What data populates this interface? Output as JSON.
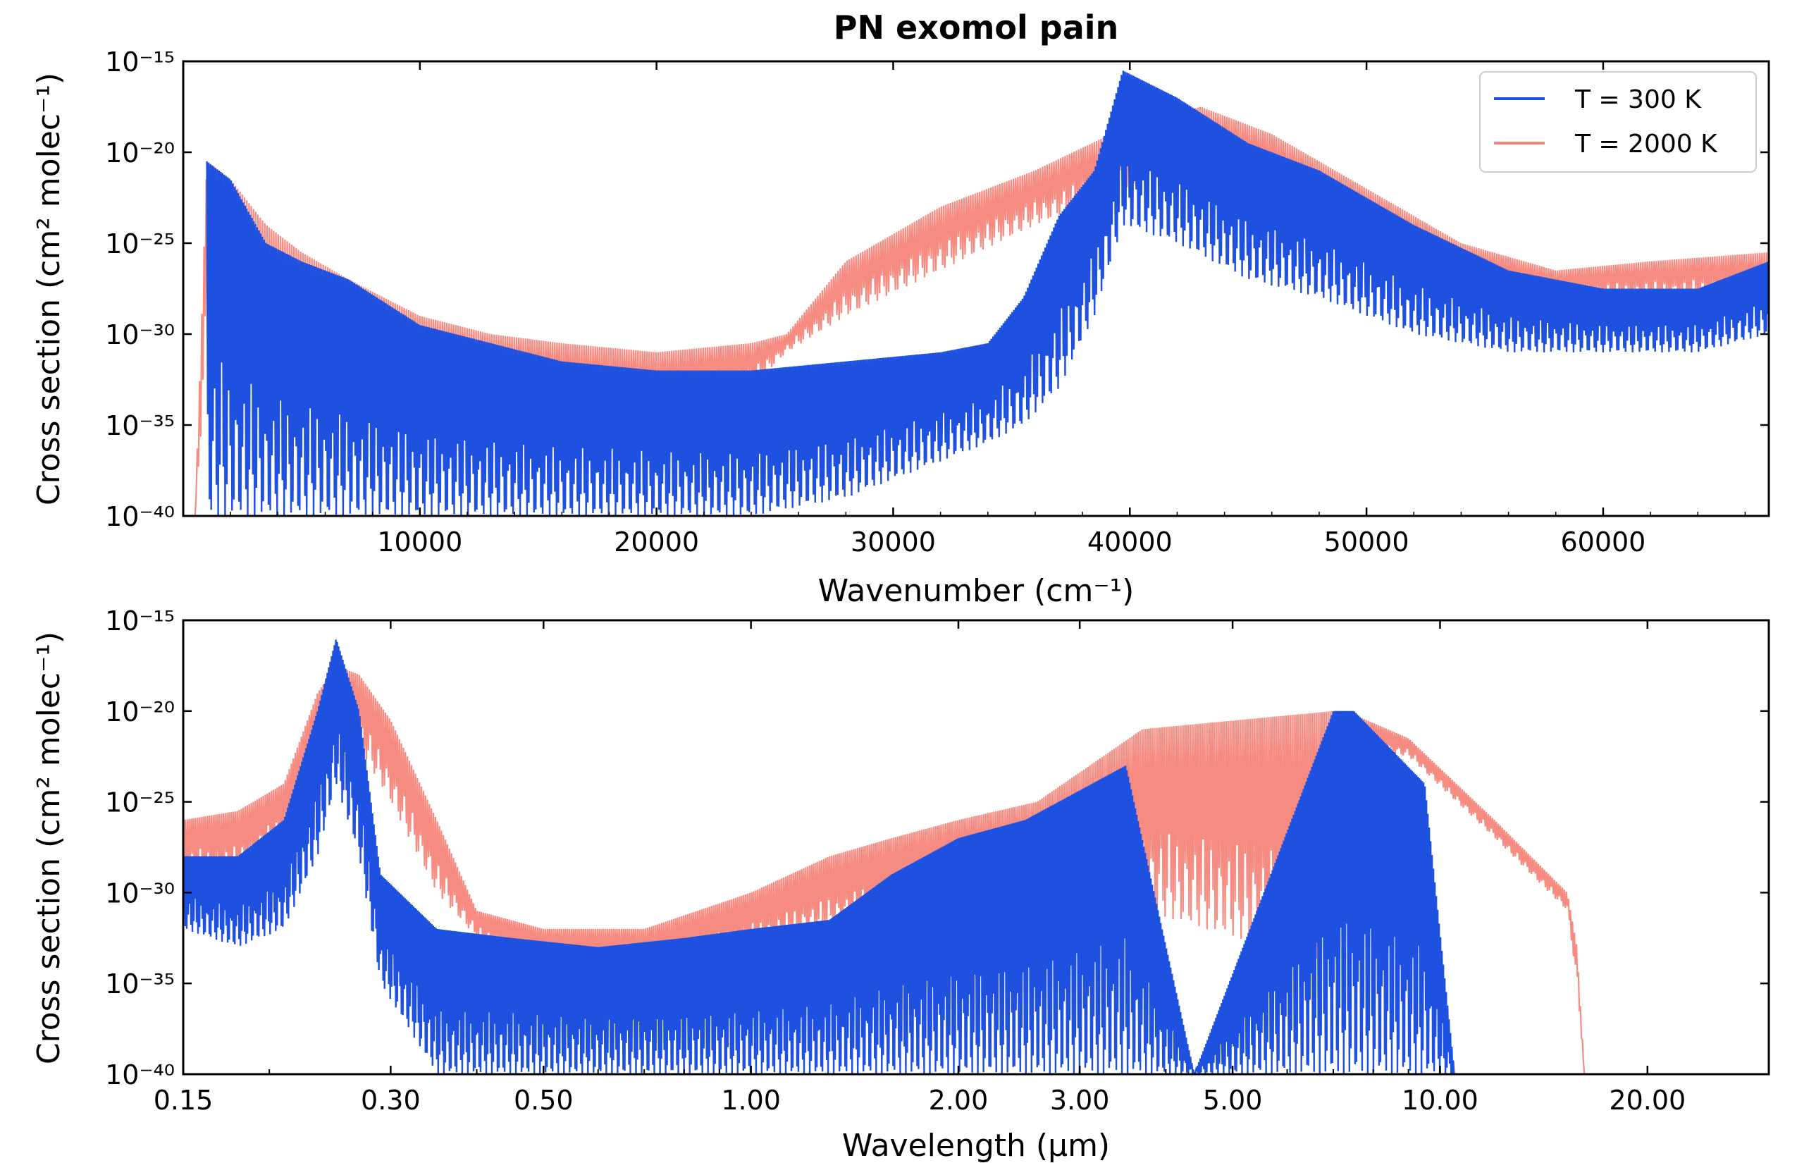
{
  "chart_data": [
    {
      "type": "line",
      "title": "PN exomol pain",
      "xlabel": "Wavenumber (cm⁻¹)",
      "ylabel": "Cross section (cm² molec⁻¹)",
      "xscale": "linear",
      "yscale": "log",
      "xlim": [
        0,
        67000
      ],
      "ylim": [
        1e-40,
        1e-15
      ],
      "xticks": [
        10000,
        20000,
        30000,
        40000,
        50000,
        60000
      ],
      "xtick_labels": [
        "10000",
        "20000",
        "30000",
        "40000",
        "50000",
        "60000"
      ],
      "yticks": [
        -40,
        -35,
        -30,
        -25,
        -20,
        -15
      ],
      "ytick_labels": [
        "10⁻⁴⁰",
        "10⁻³⁵",
        "10⁻³⁰",
        "10⁻²⁵",
        "10⁻²⁰",
        "10⁻¹⁵"
      ],
      "legend": {
        "position": "top-right",
        "entries": [
          "T = 300 K",
          "T = 2000 K"
        ]
      },
      "series": [
        {
          "name": "T = 300 K",
          "color": "#1f51e0",
          "style": "vibrational bands with deep drops",
          "x": [
            1000,
            2000,
            3500,
            5000,
            7000,
            10000,
            13000,
            16000,
            20000,
            24000,
            28000,
            32000,
            34000,
            35500,
            37000,
            38500,
            39700,
            42000,
            45000,
            48000,
            52000,
            56000,
            60000,
            64000,
            67000
          ],
          "y_log10_upper": [
            -20.5,
            -21.5,
            -25,
            -26,
            -27,
            -29.5,
            -30.5,
            -31.5,
            -32,
            -32,
            -31.5,
            -31,
            -30.5,
            -28,
            -23.5,
            -21,
            -15.5,
            -17,
            -19.5,
            -21,
            -24,
            -26.5,
            -27.5,
            -27.5,
            -26
          ],
          "y_log10_lower": [
            -40,
            -40,
            -40,
            -40,
            -40,
            -40,
            -40,
            -40,
            -40,
            -40,
            -39,
            -37,
            -36,
            -35,
            -33,
            -29,
            -24,
            -25,
            -27,
            -28,
            -30,
            -31,
            -31,
            -31,
            -30
          ]
        },
        {
          "name": "T = 2000 K",
          "color": "#f4857a",
          "style": "dense filled band",
          "x": [
            500,
            1000,
            2000,
            3500,
            5000,
            7000,
            10000,
            13000,
            16000,
            20000,
            24000,
            25500,
            28000,
            32000,
            36000,
            40000,
            43000,
            46000,
            50000,
            54000,
            58000,
            62000,
            67000
          ],
          "y_log10_upper": [
            -40,
            -20.5,
            -21.5,
            -24,
            -25.5,
            -27,
            -29,
            -30,
            -30.5,
            -31,
            -30.5,
            -30,
            -26,
            -23,
            -21,
            -18.5,
            -17.5,
            -19,
            -22,
            -25,
            -26.5,
            -26,
            -25.5
          ],
          "y_log10_lower": [
            -40,
            -31,
            -31.5,
            -31.5,
            -31.5,
            -31.5,
            -32,
            -33,
            -34,
            -34.5,
            -33,
            -31,
            -29,
            -26.5,
            -24,
            -22,
            -20.5,
            -22,
            -24.5,
            -27,
            -28,
            -28,
            -28
          ]
        }
      ]
    },
    {
      "type": "line",
      "title": "",
      "xlabel": "Wavelength (μm)",
      "ylabel": "Cross section (cm² molec⁻¹)",
      "xscale": "log",
      "yscale": "log",
      "xlim": [
        0.15,
        30
      ],
      "ylim": [
        1e-40,
        1e-15
      ],
      "xticks": [
        0.15,
        0.3,
        0.5,
        1.0,
        2.0,
        3.0,
        5.0,
        10.0,
        20.0
      ],
      "xtick_labels": [
        "0.15",
        "0.30",
        "0.50",
        "1.00",
        "2.00",
        "3.00",
        "5.00",
        "10.00",
        "20.00"
      ],
      "yticks": [
        -40,
        -35,
        -30,
        -25,
        -20,
        -15
      ],
      "ytick_labels": [
        "10⁻⁴⁰",
        "10⁻³⁵",
        "10⁻³⁰",
        "10⁻²⁵",
        "10⁻²⁰",
        "10⁻¹⁵"
      ],
      "series": [
        {
          "name": "T = 300 K",
          "color": "#1f51e0",
          "style": "vibrational bands with deep drops",
          "x": [
            0.15,
            0.18,
            0.21,
            0.235,
            0.25,
            0.27,
            0.29,
            0.35,
            0.45,
            0.6,
            0.8,
            1.0,
            1.3,
            1.6,
            2.0,
            2.5,
            3.5,
            4.4,
            7.0,
            7.5,
            9.5,
            10.5
          ],
          "y_log10_upper": [
            -28,
            -28,
            -26,
            -20,
            -16,
            -20,
            -29,
            -32,
            -32.5,
            -33,
            -32.5,
            -32,
            -31.5,
            -29,
            -27,
            -26,
            -23,
            -40,
            -20,
            -20,
            -24,
            -40
          ],
          "y_log10_lower": [
            -32,
            -33,
            -32,
            -28,
            -24,
            -28,
            -35,
            -40,
            -40,
            -40,
            -40,
            -40,
            -40,
            -40,
            -40,
            -40,
            -40,
            -40,
            -40,
            -40,
            -40,
            -40
          ]
        },
        {
          "name": "T = 2000 K",
          "color": "#f4857a",
          "style": "dense filled band",
          "x": [
            0.15,
            0.18,
            0.21,
            0.235,
            0.25,
            0.27,
            0.3,
            0.35,
            0.4,
            0.5,
            0.7,
            1.0,
            1.3,
            1.6,
            2.0,
            2.6,
            3.7,
            7.0,
            7.3,
            9.0,
            12.0,
            15.3,
            15.8,
            16.2
          ],
          "y_log10_upper": [
            -26,
            -25.5,
            -24,
            -19,
            -17.5,
            -18,
            -20.5,
            -26,
            -31,
            -32,
            -32,
            -30,
            -28,
            -27,
            -26,
            -25,
            -21,
            -20,
            -20,
            -21.5,
            -26,
            -30,
            -33,
            -40
          ],
          "y_log10_lower": [
            -29,
            -29,
            -27,
            -22,
            -20.5,
            -22,
            -25,
            -30,
            -32.5,
            -34,
            -34.5,
            -33,
            -32,
            -31,
            -30,
            -30,
            -31,
            -34,
            -22,
            -22.5,
            -27,
            -31,
            -35,
            -40
          ]
        }
      ]
    }
  ]
}
